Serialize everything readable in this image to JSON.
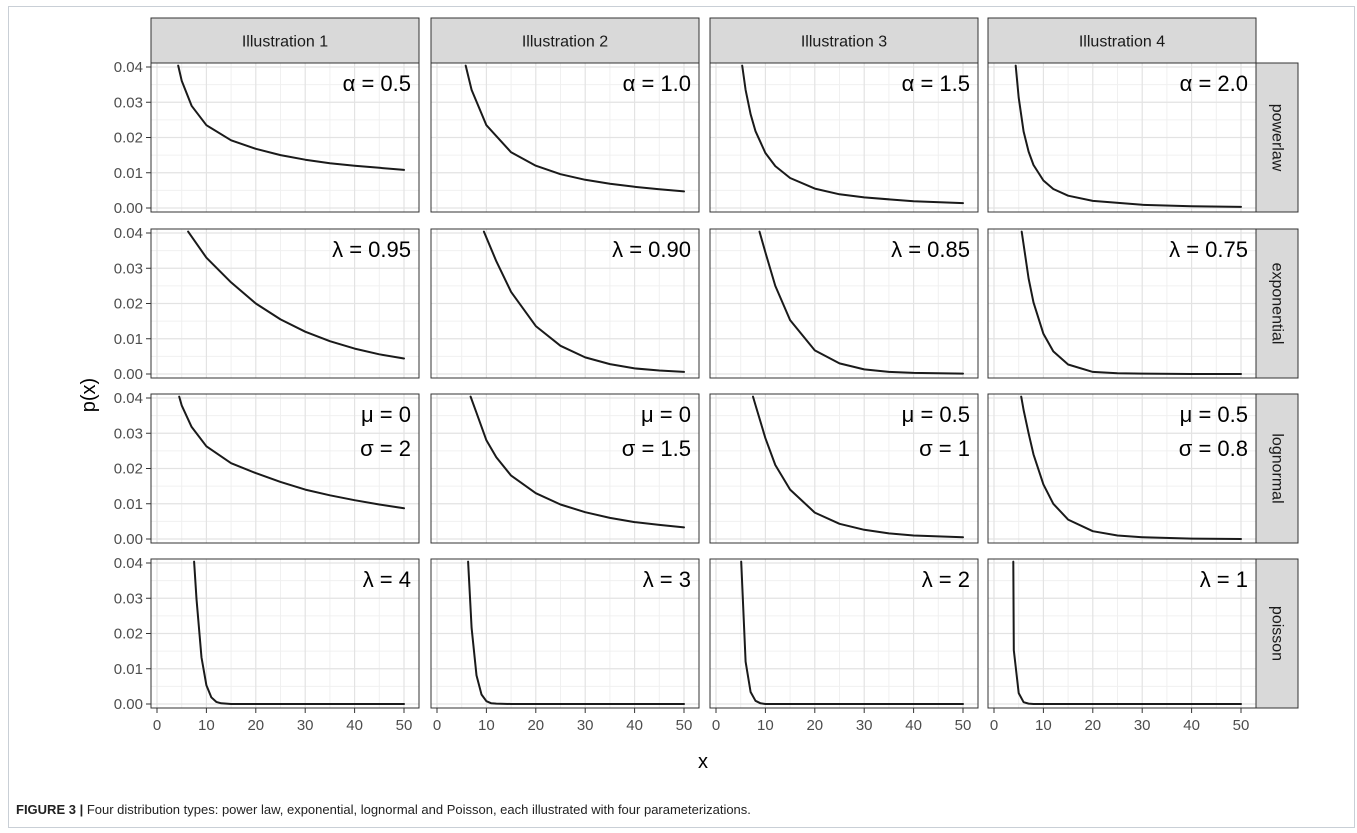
{
  "caption": {
    "label": "FIGURE 3 |",
    "text": "Four distribution types: power law, exponential, lognormal and Poisson, each illustrated with four parameterizations."
  },
  "chart_data": {
    "type": "line",
    "xlabel": "x",
    "ylabel": "p(x)",
    "xlim": [
      0,
      50
    ],
    "ylim": [
      0,
      0.04
    ],
    "x_ticks": [
      0,
      10,
      20,
      30,
      40,
      50
    ],
    "y_ticks": [
      "0.00",
      "0.01",
      "0.02",
      "0.03",
      "0.04"
    ],
    "grid": true,
    "columns": [
      "Illustration 1",
      "Illustration 2",
      "Illustration 3",
      "Illustration 4"
    ],
    "rows": [
      "powerlaw",
      "exponential",
      "lognormal",
      "poisson"
    ],
    "line_color": "#1a1a1a",
    "panels": [
      {
        "row": 0,
        "col": 0,
        "labels": [
          "α = 0.5"
        ],
        "x": [
          4.3,
          5,
          7,
          10,
          15,
          20,
          25,
          30,
          35,
          40,
          45,
          50
        ],
        "y": [
          0.0404,
          0.0361,
          0.029,
          0.0235,
          0.0192,
          0.0168,
          0.015,
          0.0137,
          0.0127,
          0.012,
          0.0114,
          0.0108
        ]
      },
      {
        "row": 0,
        "col": 1,
        "labels": [
          "α = 1.0"
        ],
        "x": [
          5.8,
          7,
          10,
          15,
          20,
          25,
          30,
          35,
          40,
          45,
          50
        ],
        "y": [
          0.0404,
          0.0335,
          0.0235,
          0.0158,
          0.012,
          0.0096,
          0.008,
          0.0069,
          0.006,
          0.0053,
          0.0047
        ]
      },
      {
        "row": 0,
        "col": 2,
        "labels": [
          "α = 1.5"
        ],
        "x": [
          5.3,
          6,
          7,
          8,
          10,
          12,
          15,
          20,
          25,
          30,
          40,
          50
        ],
        "y": [
          0.0404,
          0.0335,
          0.0266,
          0.0218,
          0.0156,
          0.0119,
          0.0085,
          0.0055,
          0.0039,
          0.003,
          0.0019,
          0.0014
        ]
      },
      {
        "row": 0,
        "col": 3,
        "labels": [
          "α = 2.0"
        ],
        "x": [
          4.4,
          5,
          6,
          7,
          8,
          10,
          12,
          15,
          20,
          30,
          40,
          50
        ],
        "y": [
          0.0404,
          0.0313,
          0.0217,
          0.016,
          0.0122,
          0.0078,
          0.0054,
          0.0035,
          0.002,
          0.0009,
          0.0005,
          0.0003
        ]
      },
      {
        "row": 1,
        "col": 0,
        "labels": [
          "λ = 0.95"
        ],
        "x": [
          6.3,
          10,
          15,
          20,
          25,
          30,
          35,
          40,
          45,
          50
        ],
        "y": [
          0.0404,
          0.033,
          0.026,
          0.02,
          0.0155,
          0.012,
          0.0093,
          0.0072,
          0.0056,
          0.0044
        ]
      },
      {
        "row": 1,
        "col": 1,
        "labels": [
          "λ = 0.90"
        ],
        "x": [
          9.5,
          12,
          15,
          20,
          25,
          30,
          35,
          40,
          45,
          50
        ],
        "y": [
          0.0404,
          0.032,
          0.0233,
          0.0136,
          0.008,
          0.0047,
          0.0028,
          0.0016,
          0.001,
          0.0006
        ]
      },
      {
        "row": 1,
        "col": 2,
        "labels": [
          "λ = 0.85"
        ],
        "x": [
          8.8,
          10,
          12,
          15,
          20,
          25,
          30,
          35,
          40,
          50
        ],
        "y": [
          0.0404,
          0.0345,
          0.025,
          0.0153,
          0.0067,
          0.003,
          0.0013,
          0.0006,
          0.0003,
          0.0001
        ]
      },
      {
        "row": 1,
        "col": 3,
        "labels": [
          "λ = 0.75"
        ],
        "x": [
          5.6,
          7,
          8,
          10,
          12,
          15,
          20,
          25,
          30,
          40,
          50
        ],
        "y": [
          0.0404,
          0.0271,
          0.0203,
          0.0114,
          0.0064,
          0.0027,
          0.0006,
          0.0002,
          0.0001,
          0.0,
          0.0
        ]
      },
      {
        "row": 2,
        "col": 0,
        "labels": [
          "μ = 0",
          "σ = 2"
        ],
        "x": [
          4.5,
          5,
          7,
          10,
          15,
          20,
          25,
          30,
          35,
          40,
          45,
          50
        ],
        "y": [
          0.0404,
          0.0379,
          0.0318,
          0.0263,
          0.0215,
          0.0187,
          0.0162,
          0.014,
          0.0124,
          0.011,
          0.0098,
          0.0087
        ]
      },
      {
        "row": 2,
        "col": 1,
        "labels": [
          "μ = 0",
          "σ = 1.5"
        ],
        "x": [
          6.8,
          8,
          10,
          12,
          15,
          20,
          25,
          30,
          35,
          40,
          45,
          50
        ],
        "y": [
          0.0404,
          0.0358,
          0.028,
          0.0232,
          0.018,
          0.013,
          0.0098,
          0.0076,
          0.006,
          0.0048,
          0.004,
          0.0033
        ]
      },
      {
        "row": 2,
        "col": 2,
        "labels": [
          "μ = 0.5",
          "σ = 1"
        ],
        "x": [
          7.5,
          8,
          10,
          12,
          15,
          20,
          25,
          30,
          35,
          40,
          50
        ],
        "y": [
          0.0404,
          0.038,
          0.0286,
          0.021,
          0.014,
          0.0075,
          0.0043,
          0.0026,
          0.0016,
          0.001,
          0.0005
        ]
      },
      {
        "row": 2,
        "col": 3,
        "labels": [
          "μ = 0.5",
          "σ = 0.8"
        ],
        "x": [
          5.5,
          6,
          7,
          8,
          10,
          12,
          15,
          20,
          25,
          30,
          40,
          50
        ],
        "y": [
          0.0404,
          0.0366,
          0.03,
          0.024,
          0.0155,
          0.01,
          0.0055,
          0.0022,
          0.001,
          0.0005,
          0.0001,
          0.0
        ]
      },
      {
        "row": 3,
        "col": 0,
        "labels": [
          "λ = 4"
        ],
        "x": [
          7.5,
          8,
          9,
          10,
          11,
          12,
          13,
          14,
          15,
          20,
          30,
          40,
          50
        ],
        "y": [
          0.0404,
          0.0298,
          0.0132,
          0.0053,
          0.0019,
          0.0006,
          0.0002,
          0.0001,
          0.0,
          0.0,
          0.0,
          0.0,
          0.0
        ]
      },
      {
        "row": 3,
        "col": 1,
        "labels": [
          "λ = 3"
        ],
        "x": [
          6.3,
          7,
          8,
          9,
          10,
          11,
          12,
          15,
          20,
          30,
          40,
          50
        ],
        "y": [
          0.0404,
          0.0216,
          0.0081,
          0.0027,
          0.0008,
          0.0002,
          0.0001,
          0.0,
          0.0,
          0.0,
          0.0,
          0.0
        ]
      },
      {
        "row": 3,
        "col": 2,
        "labels": [
          "λ = 2"
        ],
        "x": [
          5.1,
          6,
          7,
          8,
          9,
          10,
          15,
          20,
          30,
          40,
          50
        ],
        "y": [
          0.0404,
          0.012,
          0.0034,
          0.0009,
          0.0002,
          0.0,
          0.0,
          0.0,
          0.0,
          0.0,
          0.0
        ]
      },
      {
        "row": 3,
        "col": 3,
        "labels": [
          "λ = 1"
        ],
        "x": [
          3.9,
          4,
          5,
          6,
          7,
          8,
          10,
          15,
          20,
          30,
          40,
          50
        ],
        "y": [
          0.0404,
          0.0153,
          0.0031,
          0.0005,
          0.0001,
          0.0,
          0.0,
          0.0,
          0.0,
          0.0,
          0.0,
          0.0
        ]
      }
    ]
  }
}
